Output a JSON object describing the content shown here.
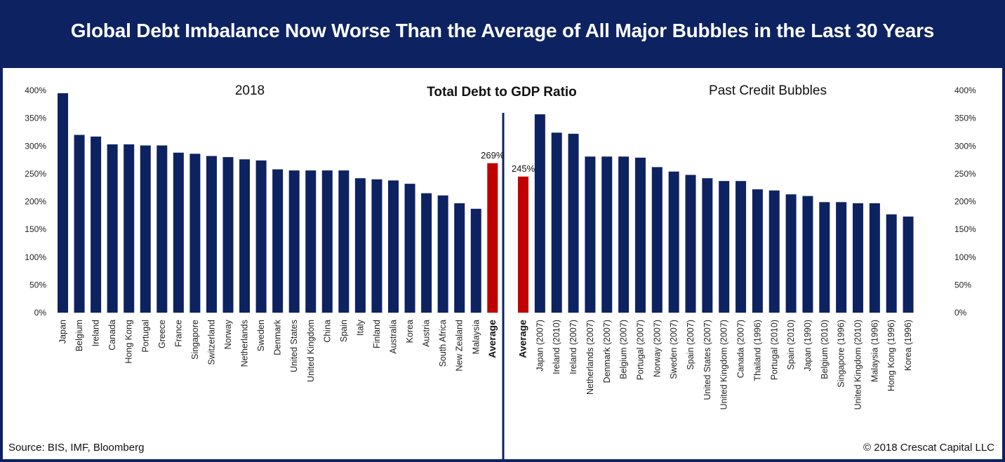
{
  "title": "Global Debt Imbalance Now Worse Than the Average of All Major Bubbles in the Last 30 Years",
  "source": "Source: BIS, IMF, Bloomberg",
  "copyright": "© 2018 Crescat Capital LLC",
  "chart_center_title": "Total Debt to GDP Ratio",
  "colors": {
    "bar": "#0d2260",
    "average": "#c00000",
    "frame": "#0d2260"
  },
  "chart_data": [
    {
      "type": "bar",
      "title": "2018",
      "ylabel": "",
      "xlabel": "",
      "ylim": [
        0,
        400
      ],
      "yticks": [
        "0%",
        "50%",
        "100%",
        "150%",
        "200%",
        "250%",
        "300%",
        "350%",
        "400%"
      ],
      "axis_side": "left",
      "categories": [
        "Japan",
        "Belgium",
        "Ireland",
        "Canada",
        "Hong Kong",
        "Portugal",
        "Greece",
        "France",
        "Singapore",
        "Switzerland",
        "Norway",
        "Netherlands",
        "Sweden",
        "Denmark",
        "United States",
        "United Kingdom",
        "China",
        "Spain",
        "Italy",
        "Finland",
        "Australia",
        "Korea",
        "Austria",
        "South Africa",
        "New Zealand",
        "Malaysia",
        "Average"
      ],
      "values": [
        395,
        320,
        317,
        303,
        303,
        301,
        301,
        288,
        286,
        282,
        280,
        276,
        274,
        258,
        256,
        256,
        256,
        256,
        242,
        240,
        238,
        232,
        215,
        211,
        197,
        187,
        269
      ],
      "highlight": "Average",
      "data_labels": {
        "Average": "269%"
      }
    },
    {
      "type": "bar",
      "title": "Past Credit Bubbles",
      "ylabel": "",
      "xlabel": "",
      "ylim": [
        0,
        400
      ],
      "yticks": [
        "0%",
        "50%",
        "100%",
        "150%",
        "200%",
        "250%",
        "300%",
        "350%",
        "400%"
      ],
      "axis_side": "right",
      "categories": [
        "Average",
        "Japan (2007)",
        "Ireland (2010)",
        "Ireland (2007)",
        "Netherlands (2007)",
        "Denmark (2007)",
        "Belgium (2007)",
        "Portugal (2007)",
        "Norway (2007)",
        "Sweden (2007)",
        "Spain (2007)",
        "United States (2007)",
        "United Kingdom (2007)",
        "Canada (2007)",
        "Thailand (1996)",
        "Portugal (2010)",
        "Spain (2010)",
        "Japan (1990)",
        "Belgium (2010)",
        "Singapore (1996)",
        "United Kingdom (2010)",
        "Malaysia (1996)",
        "Hong Kong (1996)",
        "Korea (1996)"
      ],
      "values": [
        245,
        357,
        324,
        322,
        281,
        281,
        281,
        279,
        262,
        254,
        248,
        242,
        237,
        237,
        222,
        220,
        213,
        210,
        199,
        199,
        197,
        197,
        177,
        173
      ],
      "highlight": "Average",
      "data_labels": {
        "Average": "245%"
      }
    }
  ]
}
